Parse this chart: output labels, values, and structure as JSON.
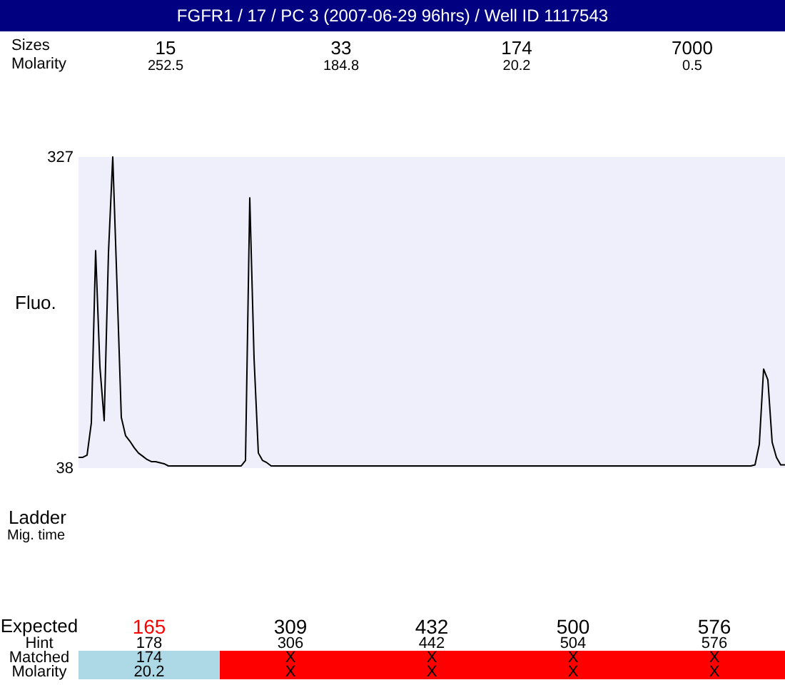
{
  "chart_data": {
    "type": "line",
    "title": "FGFR1 / 17 / PC 3 (2007-06-29 96hrs) / Well ID 1117543",
    "ylabel": "Fluo.",
    "categories": [
      null,
      null,
      null,
      null,
      null,
      null,
      null,
      null,
      null,
      null,
      null,
      null,
      null,
      null,
      null,
      null,
      null,
      null,
      null,
      null,
      null,
      null,
      null,
      null,
      null,
      null,
      null,
      null,
      null,
      null,
      null,
      null,
      null,
      null,
      null,
      null,
      null,
      null,
      null,
      null,
      null,
      null,
      null,
      null,
      null,
      null,
      null,
      null,
      null,
      null,
      null,
      null,
      null,
      null,
      null,
      null,
      null,
      null,
      null,
      null,
      null,
      null,
      null,
      null,
      null,
      null,
      null,
      null,
      null,
      null,
      null,
      null,
      null,
      null,
      null,
      null,
      null,
      null,
      null,
      null,
      null,
      null,
      null,
      null,
      null,
      null,
      null,
      null,
      null,
      null,
      null,
      null,
      null,
      null,
      null,
      null,
      null,
      null,
      null,
      null,
      null,
      null,
      null,
      null,
      null,
      null,
      null,
      null,
      null,
      null,
      null,
      null,
      null,
      null,
      null,
      null,
      null,
      null,
      null,
      null,
      null,
      null,
      null,
      null,
      null,
      null,
      null,
      null,
      null,
      null,
      null,
      null,
      null,
      null,
      null,
      null,
      null,
      null,
      null,
      null,
      null,
      null,
      null,
      null,
      null,
      null,
      null,
      null,
      null,
      null,
      null,
      null,
      null,
      null,
      null,
      null,
      null,
      null,
      null,
      null,
      null,
      null,
      null,
      null,
      null,
      null
    ],
    "series": [
      {
        "color": "#000000",
        "values": [
          48,
          48,
          50,
          80,
          240,
          132,
          82,
          238,
          327,
          207,
          85,
          68,
          63,
          57,
          52,
          49,
          46,
          44,
          44,
          43,
          42,
          40,
          40,
          40,
          40,
          40,
          40,
          40,
          40,
          40,
          40,
          40,
          40,
          40,
          40,
          40,
          40,
          40,
          40,
          45,
          289,
          140,
          52,
          45,
          43,
          40,
          40,
          40,
          40,
          40,
          40,
          40,
          40,
          40,
          40,
          40,
          40,
          40,
          40,
          40,
          40,
          40,
          40,
          40,
          40,
          40,
          40,
          40,
          40,
          40,
          40,
          40,
          40,
          40,
          40,
          40,
          40,
          40,
          40,
          40,
          40,
          40,
          40,
          40,
          40,
          40,
          40,
          40,
          40,
          40,
          40,
          40,
          40,
          40,
          40,
          40,
          40,
          40,
          40,
          40,
          40,
          40,
          40,
          40,
          40,
          40,
          40,
          40,
          40,
          40,
          40,
          40,
          40,
          40,
          40,
          40,
          40,
          40,
          40,
          40,
          40,
          40,
          40,
          40,
          40,
          40,
          40,
          40,
          40,
          40,
          40,
          40,
          40,
          40,
          40,
          40,
          40,
          40,
          40,
          40,
          40,
          40,
          40,
          40,
          40,
          40,
          40,
          40,
          40,
          40,
          40,
          40,
          40,
          40,
          40,
          40,
          40,
          40,
          41,
          60,
          130,
          120,
          62,
          48,
          41,
          41
        ]
      }
    ],
    "ylim": [
      38,
      327
    ],
    "yticks": [
      38,
      327
    ],
    "tick_labels": "y",
    "line_style": "solid",
    "annotations": [
      "Sizes",
      "Molarity",
      "15",
      "252.5",
      "33",
      "184.8",
      "174",
      "20.2",
      "7000",
      "0.5",
      "Ladder",
      "Mig. time",
      "Expected",
      "Hint",
      "Matched",
      "Molarity",
      "165",
      "309",
      "432",
      "500",
      "576",
      "178",
      "306",
      "442",
      "504",
      "576",
      "174",
      "X",
      "X",
      "X",
      "X",
      "20.2",
      "X",
      "X",
      "X",
      "X"
    ]
  }
}
